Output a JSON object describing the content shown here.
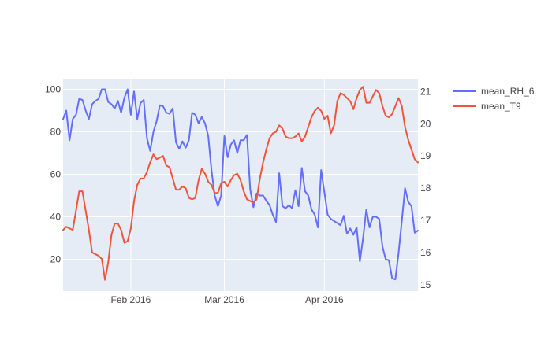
{
  "chart_data": {
    "type": "line",
    "x_start_date": "2016-01-11",
    "x_end_date": "2016-04-30",
    "x_ticks": [
      {
        "date": "2016-02-01",
        "label": "Feb 2016"
      },
      {
        "date": "2016-03-01",
        "label": "Mar 2016"
      },
      {
        "date": "2016-04-01",
        "label": "Apr 2016"
      }
    ],
    "y_left": {
      "ylim": [
        5,
        105
      ],
      "ticks": [
        20,
        40,
        60,
        80,
        100
      ]
    },
    "y_right": {
      "ylim": [
        14.8,
        21.4
      ],
      "ticks": [
        15,
        16,
        17,
        18,
        19,
        20,
        21
      ]
    },
    "legend_position": "top-right",
    "grid": true,
    "series": [
      {
        "name": "mean_RH_6",
        "color": "#636efa",
        "axis": "left",
        "values": [
          86,
          90,
          76,
          86,
          88,
          95.5,
          95,
          90,
          86,
          93,
          94.5,
          95.5,
          100,
          100,
          94,
          93,
          91,
          94.5,
          89,
          96,
          100,
          88,
          99,
          86,
          93.5,
          95,
          77,
          71,
          80,
          85,
          92.5,
          92,
          89,
          88.5,
          91,
          75,
          72,
          75.5,
          72.5,
          76,
          89,
          88,
          84,
          87,
          84,
          78,
          62,
          50,
          45,
          50,
          78,
          68,
          74,
          76,
          70,
          76,
          76,
          78.5,
          53,
          44.5,
          51,
          50,
          50,
          47.5,
          45.5,
          41,
          37.5,
          60.5,
          45,
          44,
          45.5,
          44,
          52.5,
          45,
          63,
          52,
          50,
          43.5,
          41,
          35,
          62,
          51.5,
          41,
          39,
          38,
          37,
          36,
          40.5,
          32,
          34.5,
          31.5,
          35,
          19,
          30,
          43.5,
          35,
          40,
          40,
          39,
          26,
          20,
          19.5,
          11,
          10.5,
          23,
          38,
          53.5,
          47,
          45,
          32.5,
          33.5
        ]
      },
      {
        "name": "mean_T9",
        "color": "#ef553b",
        "axis": "right",
        "values": [
          16.7,
          16.8,
          16.75,
          16.7,
          17.3,
          17.9,
          17.9,
          17.3,
          16.7,
          16,
          15.95,
          15.9,
          15.8,
          15.15,
          15.7,
          16.55,
          16.9,
          16.9,
          16.7,
          16.3,
          16.35,
          16.75,
          17.6,
          18.1,
          18.3,
          18.3,
          18.5,
          18.8,
          19.05,
          18.9,
          18.95,
          19,
          18.7,
          18.65,
          18.3,
          17.95,
          17.95,
          18.05,
          18,
          17.7,
          17.65,
          17.7,
          18.25,
          18.6,
          18.45,
          18.2,
          18.1,
          17.85,
          17.85,
          18.15,
          18.2,
          18.05,
          18.25,
          18.4,
          18.45,
          18.25,
          17.9,
          17.65,
          17.6,
          17.55,
          17.65,
          18.3,
          18.8,
          19.2,
          19.55,
          19.7,
          19.75,
          19.95,
          19.85,
          19.6,
          19.55,
          19.55,
          19.6,
          19.7,
          19.45,
          19.6,
          19.9,
          20.2,
          20.4,
          20.5,
          20.4,
          20.15,
          20.25,
          19.7,
          19.95,
          20.7,
          20.95,
          20.9,
          20.8,
          20.7,
          20.45,
          20.8,
          21.05,
          21.15,
          20.65,
          20.65,
          20.85,
          21.05,
          20.95,
          20.55,
          20.25,
          20.2,
          20.3,
          20.55,
          20.8,
          20.55,
          19.9,
          19.5,
          19.2,
          18.9,
          18.8
        ]
      }
    ]
  }
}
